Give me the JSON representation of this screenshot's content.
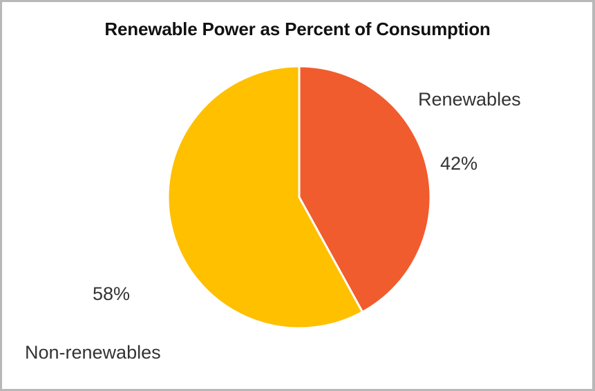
{
  "chart_data": {
    "type": "pie",
    "title": "Renewable Power as Percent of Consumption",
    "slices": [
      {
        "label": "Renewables",
        "value": 42,
        "value_label": "42%",
        "color": "#F05C2D"
      },
      {
        "label": "Non-renewables",
        "value": 58,
        "value_label": "58%",
        "color": "#FFC000"
      }
    ],
    "legend": "none"
  }
}
